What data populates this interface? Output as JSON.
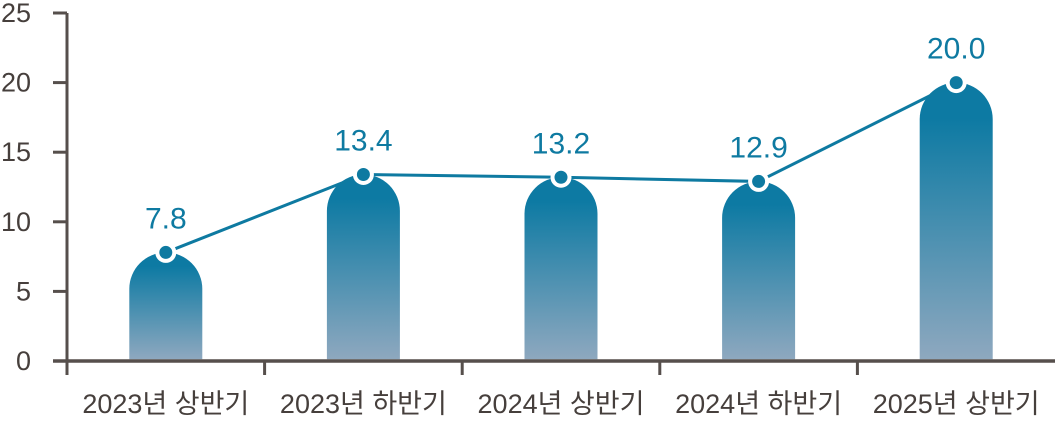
{
  "chart_data": {
    "type": "bar",
    "subtype": "bar-line-combo",
    "title": "",
    "xlabel": "",
    "ylabel": "",
    "categories": [
      "2023년 상반기",
      "2023년 하반기",
      "2024년 상반기",
      "2024년 하반기",
      "2025년 상반기"
    ],
    "values": [
      7.8,
      13.4,
      13.2,
      12.9,
      20.0
    ],
    "value_labels": [
      "7.8",
      "13.4",
      "13.2",
      "12.9",
      "20.0"
    ],
    "ylim": [
      0,
      25
    ],
    "yticks": [
      0,
      5,
      10,
      15,
      20,
      25
    ],
    "grid": false,
    "legend": false,
    "marker": "circle",
    "colors": {
      "line": "#0e7aa1",
      "marker_fill": "#0e7aa1",
      "marker_ring": "#ffffff",
      "bar_top": "#0d7aa3",
      "bar_bottom": "#8ea8bf",
      "axis": "#564f4c",
      "tick_label": "#463f3c",
      "data_label": "#0e7aa1",
      "background": "#ffffff"
    }
  }
}
